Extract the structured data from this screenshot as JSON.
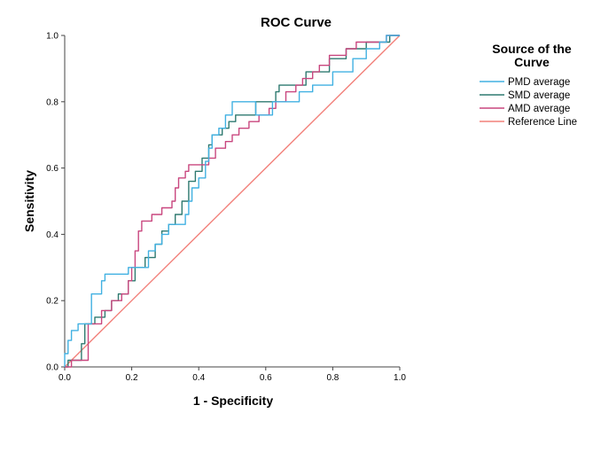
{
  "chart_data": {
    "type": "line",
    "title": "ROC Curve",
    "xlabel": "1 - Specificity",
    "ylabel": "Sensitivity",
    "xlim": [
      0,
      1
    ],
    "ylim": [
      0,
      1
    ],
    "x_ticks": [
      "0.0",
      "0.2",
      "0.4",
      "0.6",
      "0.8",
      "1.0"
    ],
    "y_ticks": [
      "0.0",
      "0.2",
      "0.4",
      "0.6",
      "0.8",
      "1.0"
    ],
    "grid": false,
    "legend": {
      "title_line1": "Source of the",
      "title_line2": "Curve",
      "placement": "right"
    },
    "series": [
      {
        "name": "PMD average",
        "color": "#41b1e2",
        "step": true,
        "points": [
          [
            0,
            0
          ],
          [
            0,
            0.04
          ],
          [
            0.01,
            0.08
          ],
          [
            0.02,
            0.11
          ],
          [
            0.04,
            0.13
          ],
          [
            0.07,
            0.13
          ],
          [
            0.08,
            0.22
          ],
          [
            0.11,
            0.26
          ],
          [
            0.12,
            0.28
          ],
          [
            0.16,
            0.28
          ],
          [
            0.19,
            0.3
          ],
          [
            0.23,
            0.3
          ],
          [
            0.25,
            0.35
          ],
          [
            0.27,
            0.37
          ],
          [
            0.29,
            0.4
          ],
          [
            0.31,
            0.43
          ],
          [
            0.34,
            0.43
          ],
          [
            0.36,
            0.46
          ],
          [
            0.37,
            0.5
          ],
          [
            0.38,
            0.54
          ],
          [
            0.4,
            0.57
          ],
          [
            0.42,
            0.62
          ],
          [
            0.43,
            0.66
          ],
          [
            0.44,
            0.7
          ],
          [
            0.46,
            0.72
          ],
          [
            0.48,
            0.76
          ],
          [
            0.5,
            0.8
          ],
          [
            0.55,
            0.8
          ],
          [
            0.57,
            0.76
          ],
          [
            0.6,
            0.76
          ],
          [
            0.62,
            0.8
          ],
          [
            0.68,
            0.8
          ],
          [
            0.7,
            0.83
          ],
          [
            0.73,
            0.83
          ],
          [
            0.74,
            0.85
          ],
          [
            0.79,
            0.85
          ],
          [
            0.8,
            0.89
          ],
          [
            0.84,
            0.89
          ],
          [
            0.86,
            0.93
          ],
          [
            0.88,
            0.93
          ],
          [
            0.9,
            0.96
          ],
          [
            0.93,
            0.96
          ],
          [
            0.94,
            0.98
          ],
          [
            0.96,
            1
          ],
          [
            1,
            1
          ]
        ]
      },
      {
        "name": "SMD average",
        "color": "#2f7a70",
        "step": true,
        "points": [
          [
            0,
            0
          ],
          [
            0.01,
            0.02
          ],
          [
            0.04,
            0.02
          ],
          [
            0.05,
            0.07
          ],
          [
            0.06,
            0.13
          ],
          [
            0.08,
            0.13
          ],
          [
            0.09,
            0.15
          ],
          [
            0.12,
            0.17
          ],
          [
            0.14,
            0.2
          ],
          [
            0.16,
            0.22
          ],
          [
            0.19,
            0.26
          ],
          [
            0.21,
            0.3
          ],
          [
            0.23,
            0.3
          ],
          [
            0.24,
            0.33
          ],
          [
            0.27,
            0.37
          ],
          [
            0.29,
            0.41
          ],
          [
            0.31,
            0.43
          ],
          [
            0.33,
            0.46
          ],
          [
            0.35,
            0.5
          ],
          [
            0.37,
            0.56
          ],
          [
            0.39,
            0.59
          ],
          [
            0.41,
            0.63
          ],
          [
            0.43,
            0.67
          ],
          [
            0.44,
            0.7
          ],
          [
            0.47,
            0.72
          ],
          [
            0.49,
            0.74
          ],
          [
            0.51,
            0.76
          ],
          [
            0.54,
            0.76
          ],
          [
            0.57,
            0.8
          ],
          [
            0.6,
            0.8
          ],
          [
            0.63,
            0.83
          ],
          [
            0.64,
            0.85
          ],
          [
            0.7,
            0.85
          ],
          [
            0.72,
            0.89
          ],
          [
            0.77,
            0.89
          ],
          [
            0.79,
            0.93
          ],
          [
            0.82,
            0.93
          ],
          [
            0.84,
            0.96
          ],
          [
            0.88,
            0.96
          ],
          [
            0.9,
            0.98
          ],
          [
            0.96,
            0.98
          ],
          [
            0.97,
            1
          ],
          [
            1,
            1
          ]
        ]
      },
      {
        "name": "AMD average",
        "color": "#c9477f",
        "step": true,
        "points": [
          [
            0,
            0
          ],
          [
            0.02,
            0.02
          ],
          [
            0.06,
            0.02
          ],
          [
            0.07,
            0.13
          ],
          [
            0.09,
            0.13
          ],
          [
            0.11,
            0.17
          ],
          [
            0.14,
            0.2
          ],
          [
            0.17,
            0.22
          ],
          [
            0.19,
            0.26
          ],
          [
            0.2,
            0.3
          ],
          [
            0.21,
            0.35
          ],
          [
            0.22,
            0.41
          ],
          [
            0.23,
            0.44
          ],
          [
            0.26,
            0.46
          ],
          [
            0.28,
            0.46
          ],
          [
            0.29,
            0.48
          ],
          [
            0.32,
            0.5
          ],
          [
            0.33,
            0.54
          ],
          [
            0.34,
            0.57
          ],
          [
            0.36,
            0.59
          ],
          [
            0.37,
            0.61
          ],
          [
            0.42,
            0.61
          ],
          [
            0.43,
            0.63
          ],
          [
            0.45,
            0.66
          ],
          [
            0.48,
            0.68
          ],
          [
            0.5,
            0.7
          ],
          [
            0.52,
            0.72
          ],
          [
            0.55,
            0.74
          ],
          [
            0.58,
            0.76
          ],
          [
            0.61,
            0.78
          ],
          [
            0.63,
            0.8
          ],
          [
            0.66,
            0.83
          ],
          [
            0.69,
            0.85
          ],
          [
            0.71,
            0.87
          ],
          [
            0.74,
            0.89
          ],
          [
            0.76,
            0.91
          ],
          [
            0.78,
            0.91
          ],
          [
            0.79,
            0.94
          ],
          [
            0.82,
            0.94
          ],
          [
            0.84,
            0.96
          ],
          [
            0.87,
            0.98
          ],
          [
            0.94,
            0.98
          ],
          [
            0.96,
            1
          ],
          [
            1,
            1
          ]
        ]
      },
      {
        "name": "Reference Line",
        "color": "#f2807a",
        "step": false,
        "points": [
          [
            0,
            0
          ],
          [
            1,
            1
          ]
        ]
      }
    ]
  }
}
